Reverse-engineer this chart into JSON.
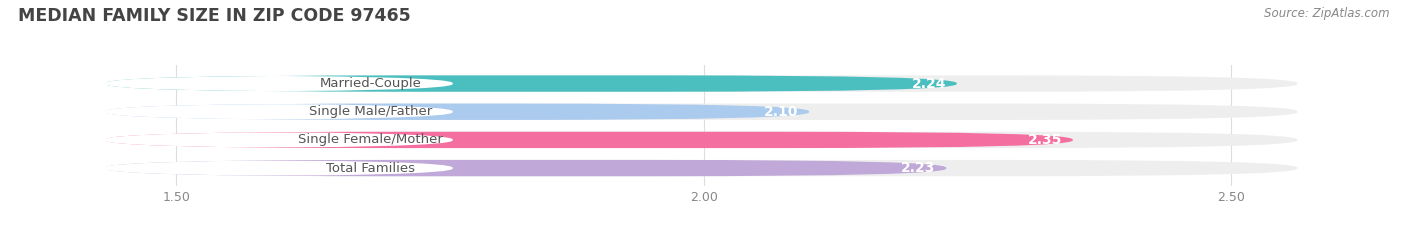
{
  "title": "MEDIAN FAMILY SIZE IN ZIP CODE 97465",
  "source": "Source: ZipAtlas.com",
  "categories": [
    "Married-Couple",
    "Single Male/Father",
    "Single Female/Mother",
    "Total Families"
  ],
  "values": [
    2.24,
    2.1,
    2.35,
    2.23
  ],
  "bar_colors": [
    "#4BBFC0",
    "#AACAEE",
    "#F46FA0",
    "#C0A8D8"
  ],
  "bar_bg_color": "#EEEEEE",
  "xlim_min": 1.35,
  "xlim_max": 2.65,
  "xticks": [
    1.5,
    2.0,
    2.5
  ],
  "background_color": "#FFFFFF",
  "title_fontsize": 12.5,
  "source_fontsize": 8.5,
  "cat_label_fontsize": 9.5,
  "val_label_fontsize": 10,
  "bar_height": 0.58,
  "title_color": "#444444",
  "source_color": "#888888",
  "tick_color": "#888888",
  "cat_label_color": "#555555",
  "val_label_color": "#FFFFFF",
  "grid_color": "#DDDDDD",
  "pill_bg": "#FAFAFA"
}
